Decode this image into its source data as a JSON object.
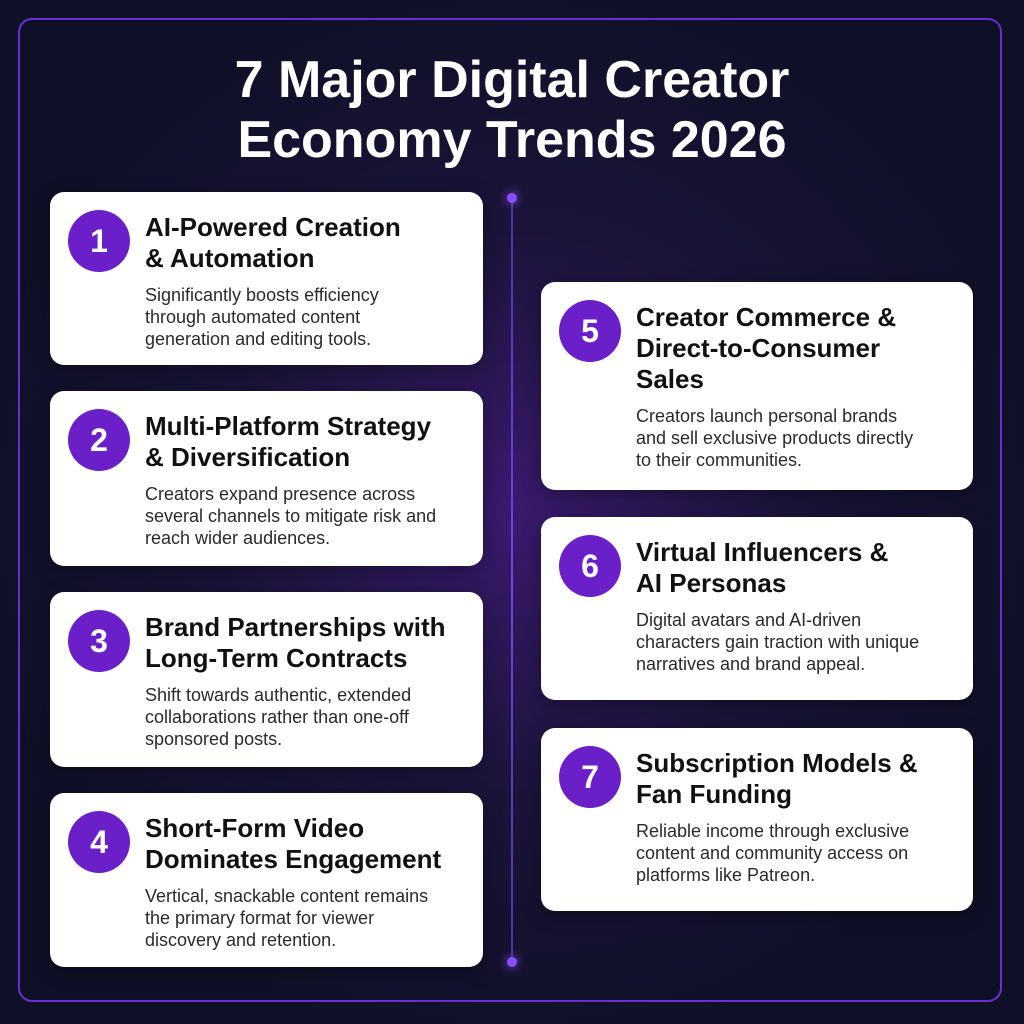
{
  "header": {
    "title_lines": [
      "7 Major Digital Creator",
      "Economy Trends 2026"
    ]
  },
  "trends": [
    {
      "number": 1,
      "title_lines": [
        "AI-Powered Creation",
        "& Automation"
      ],
      "description_lines": [
        "Significantly boosts efficiency",
        "through automated content",
        "generation and editing tools."
      ]
    },
    {
      "number": 2,
      "title_lines": [
        "Multi-Platform Strategy",
        "& Diversification"
      ],
      "description_lines": [
        "Creators expand presence across",
        "several channels to mitigate risk and",
        "reach wider audiences."
      ]
    },
    {
      "number": 3,
      "title_lines": [
        "Brand Partnerships with",
        "Long-Term Contracts"
      ],
      "description_lines": [
        "Shift towards authentic, extended",
        "collaborations rather than one-off",
        "sponsored posts."
      ]
    },
    {
      "number": 4,
      "title_lines": [
        "Short-Form Video",
        "Dominates Engagement"
      ],
      "description_lines": [
        "Vertical, snackable content remains",
        "the primary format for viewer",
        "discovery and retention."
      ]
    },
    {
      "number": 5,
      "title_lines": [
        "Creator Commerce &",
        "Direct-to-Consumer",
        "Sales"
      ],
      "description_lines": [
        "Creators launch personal brands",
        "and sell exclusive products directly",
        "to their communities."
      ]
    },
    {
      "number": 6,
      "title_lines": [
        "Virtual Influencers &",
        "AI Personas"
      ],
      "description_lines": [
        "Digital avatars and AI-driven",
        "characters gain traction with unique",
        "narratives and brand appeal."
      ]
    },
    {
      "number": 7,
      "title_lines": [
        "Subscription Models &",
        "Fan Funding"
      ],
      "description_lines": [
        "Reliable income through exclusive",
        "content and community access on",
        "platforms like Patreon."
      ]
    }
  ]
}
